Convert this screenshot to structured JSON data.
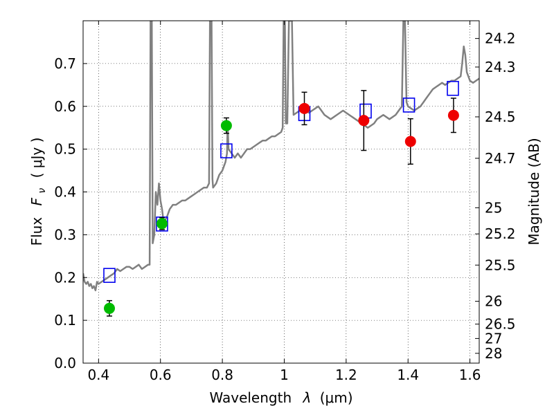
{
  "chart_data": {
    "type": "scatter",
    "xlabel_text": "Wavelength",
    "xlabel_symbol": "λ",
    "xlabel_unit": "(μm)",
    "ylabel_text": "Flux",
    "ylabel_symbol": "F",
    "ylabel_subscript": "ν",
    "ylabel_unit": "( μJy )",
    "y2label": "Magnitude (AB)",
    "xlim": [
      0.35,
      1.63
    ],
    "ylim": [
      0.0,
      0.8
    ],
    "x_ticks": [
      0.4,
      0.6,
      0.8,
      1.0,
      1.2,
      1.4,
      1.6
    ],
    "x_tick_labels": [
      "0.4",
      "0.6",
      "0.8",
      "1",
      "1.2",
      "1.4",
      "1.6"
    ],
    "y_ticks": [
      0.0,
      0.1,
      0.2,
      0.3,
      0.4,
      0.5,
      0.6,
      0.7
    ],
    "y_tick_labels": [
      "0.0",
      "0.1",
      "0.2",
      "0.3",
      "0.4",
      "0.5",
      "0.6",
      "0.7"
    ],
    "magnitude_ticks": [
      "24.2",
      "24.3",
      "24.5",
      "24.7",
      "25",
      "25.2",
      "25.5",
      "26",
      "26.5",
      "27",
      "28"
    ],
    "grid": true,
    "series": [
      {
        "name": "model-spectrum",
        "type": "line",
        "color": "#808080",
        "points": [
          [
            0.35,
            0.21
          ],
          [
            0.355,
            0.19
          ],
          [
            0.36,
            0.185
          ],
          [
            0.365,
            0.19
          ],
          [
            0.37,
            0.18
          ],
          [
            0.375,
            0.185
          ],
          [
            0.38,
            0.175
          ],
          [
            0.385,
            0.18
          ],
          [
            0.39,
            0.17
          ],
          [
            0.395,
            0.19
          ],
          [
            0.4,
            0.185
          ],
          [
            0.41,
            0.19
          ],
          [
            0.42,
            0.195
          ],
          [
            0.43,
            0.2
          ],
          [
            0.44,
            0.205
          ],
          [
            0.45,
            0.21
          ],
          [
            0.46,
            0.22
          ],
          [
            0.47,
            0.215
          ],
          [
            0.48,
            0.22
          ],
          [
            0.49,
            0.225
          ],
          [
            0.5,
            0.225
          ],
          [
            0.51,
            0.22
          ],
          [
            0.52,
            0.225
          ],
          [
            0.53,
            0.23
          ],
          [
            0.54,
            0.22
          ],
          [
            0.55,
            0.225
          ],
          [
            0.56,
            0.23
          ],
          [
            0.565,
            0.23
          ],
          [
            0.568,
            0.8
          ],
          [
            0.572,
            0.8
          ],
          [
            0.575,
            0.28
          ],
          [
            0.58,
            0.3
          ],
          [
            0.585,
            0.4
          ],
          [
            0.59,
            0.37
          ],
          [
            0.595,
            0.42
          ],
          [
            0.6,
            0.38
          ],
          [
            0.605,
            0.36
          ],
          [
            0.61,
            0.33
          ],
          [
            0.62,
            0.34
          ],
          [
            0.63,
            0.36
          ],
          [
            0.64,
            0.37
          ],
          [
            0.65,
            0.37
          ],
          [
            0.66,
            0.375
          ],
          [
            0.67,
            0.38
          ],
          [
            0.68,
            0.38
          ],
          [
            0.69,
            0.385
          ],
          [
            0.7,
            0.39
          ],
          [
            0.71,
            0.395
          ],
          [
            0.72,
            0.4
          ],
          [
            0.73,
            0.405
          ],
          [
            0.74,
            0.41
          ],
          [
            0.75,
            0.41
          ],
          [
            0.757,
            0.42
          ],
          [
            0.76,
            0.8
          ],
          [
            0.765,
            0.8
          ],
          [
            0.768,
            0.43
          ],
          [
            0.77,
            0.41
          ],
          [
            0.78,
            0.42
          ],
          [
            0.79,
            0.44
          ],
          [
            0.8,
            0.45
          ],
          [
            0.81,
            0.47
          ],
          [
            0.815,
            0.49
          ],
          [
            0.817,
            0.56
          ],
          [
            0.82,
            0.5
          ],
          [
            0.83,
            0.49
          ],
          [
            0.84,
            0.48
          ],
          [
            0.85,
            0.49
          ],
          [
            0.86,
            0.48
          ],
          [
            0.87,
            0.49
          ],
          [
            0.88,
            0.5
          ],
          [
            0.89,
            0.5
          ],
          [
            0.9,
            0.505
          ],
          [
            0.91,
            0.51
          ],
          [
            0.92,
            0.515
          ],
          [
            0.93,
            0.52
          ],
          [
            0.94,
            0.52
          ],
          [
            0.95,
            0.525
          ],
          [
            0.96,
            0.53
          ],
          [
            0.97,
            0.53
          ],
          [
            0.98,
            0.535
          ],
          [
            0.99,
            0.54
          ],
          [
            0.995,
            0.55
          ],
          [
            0.998,
            0.8
          ],
          [
            1.002,
            0.8
          ],
          [
            1.005,
            0.56
          ],
          [
            1.01,
            0.56
          ],
          [
            1.015,
            0.8
          ],
          [
            1.025,
            0.8
          ],
          [
            1.03,
            0.58
          ],
          [
            1.04,
            0.585
          ],
          [
            1.05,
            0.59
          ],
          [
            1.06,
            0.595
          ],
          [
            1.07,
            0.59
          ],
          [
            1.08,
            0.585
          ],
          [
            1.09,
            0.59
          ],
          [
            1.1,
            0.595
          ],
          [
            1.11,
            0.6
          ],
          [
            1.12,
            0.59
          ],
          [
            1.13,
            0.58
          ],
          [
            1.14,
            0.575
          ],
          [
            1.15,
            0.57
          ],
          [
            1.16,
            0.575
          ],
          [
            1.17,
            0.58
          ],
          [
            1.18,
            0.585
          ],
          [
            1.19,
            0.59
          ],
          [
            1.2,
            0.585
          ],
          [
            1.21,
            0.58
          ],
          [
            1.22,
            0.575
          ],
          [
            1.23,
            0.57
          ],
          [
            1.24,
            0.565
          ],
          [
            1.25,
            0.56
          ],
          [
            1.26,
            0.555
          ],
          [
            1.27,
            0.55
          ],
          [
            1.28,
            0.555
          ],
          [
            1.29,
            0.56
          ],
          [
            1.3,
            0.57
          ],
          [
            1.31,
            0.575
          ],
          [
            1.32,
            0.58
          ],
          [
            1.33,
            0.575
          ],
          [
            1.34,
            0.57
          ],
          [
            1.35,
            0.575
          ],
          [
            1.36,
            0.58
          ],
          [
            1.37,
            0.59
          ],
          [
            1.38,
            0.6
          ],
          [
            1.385,
            0.8
          ],
          [
            1.39,
            0.8
          ],
          [
            1.395,
            0.61
          ],
          [
            1.4,
            0.6
          ],
          [
            1.41,
            0.595
          ],
          [
            1.42,
            0.59
          ],
          [
            1.43,
            0.595
          ],
          [
            1.44,
            0.6
          ],
          [
            1.45,
            0.61
          ],
          [
            1.46,
            0.62
          ],
          [
            1.47,
            0.63
          ],
          [
            1.48,
            0.64
          ],
          [
            1.49,
            0.645
          ],
          [
            1.5,
            0.65
          ],
          [
            1.51,
            0.655
          ],
          [
            1.52,
            0.65
          ],
          [
            1.53,
            0.655
          ],
          [
            1.54,
            0.66
          ],
          [
            1.55,
            0.66
          ],
          [
            1.56,
            0.665
          ],
          [
            1.57,
            0.67
          ],
          [
            1.575,
            0.7
          ],
          [
            1.58,
            0.74
          ],
          [
            1.585,
            0.72
          ],
          [
            1.59,
            0.68
          ],
          [
            1.6,
            0.66
          ],
          [
            1.61,
            0.655
          ],
          [
            1.62,
            0.66
          ],
          [
            1.63,
            0.665
          ]
        ]
      },
      {
        "name": "model-photometry",
        "type": "scatter",
        "marker": "open-square",
        "color": "#0000ee",
        "x": [
          0.435,
          0.605,
          0.813,
          1.065,
          1.263,
          1.403,
          1.545
        ],
        "y": [
          0.205,
          0.325,
          0.496,
          0.583,
          0.589,
          0.603,
          0.642
        ]
      },
      {
        "name": "observed-green",
        "type": "scatter",
        "marker": "filled-circle",
        "color": "#00bb00",
        "x": [
          0.435,
          0.605,
          0.813
        ],
        "y": [
          0.128,
          0.326,
          0.555
        ],
        "yerr": [
          0.018,
          0.014,
          0.018
        ]
      },
      {
        "name": "observed-red",
        "type": "scatter",
        "marker": "filled-circle",
        "color": "#ee0000",
        "x": [
          1.065,
          1.257,
          1.408,
          1.547
        ],
        "y": [
          0.595,
          0.567,
          0.518,
          0.579
        ],
        "yerr": [
          0.038,
          0.07,
          0.053,
          0.04
        ]
      }
    ]
  },
  "colors": {
    "spectrum": "#808080",
    "squares": "#0000ee",
    "green": "#00bb00",
    "red": "#ee0000",
    "errorbar": "#000000"
  }
}
